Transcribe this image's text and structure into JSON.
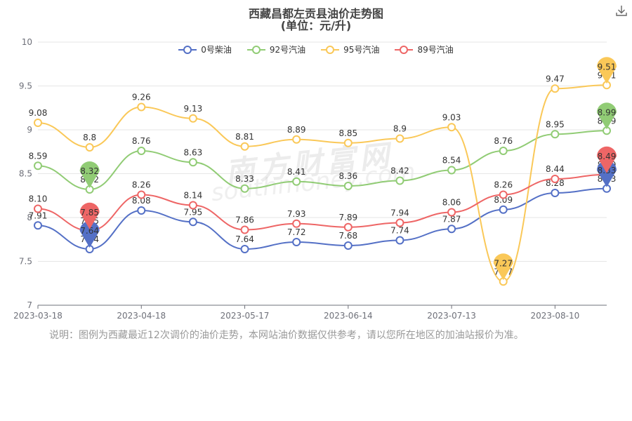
{
  "title_line1": "西藏昌都左贡县油价走势图",
  "title_line2": "(单位：元/升)",
  "download_icon": "download-icon",
  "note": "说明：图例为西藏最近12次调价的油价走势，本网站油价数据仅供参考，请以您所在地区的加油站报价为准。",
  "watermark": {
    "cn": "南方财富网",
    "en": "southmoney.com"
  },
  "chart_data": {
    "type": "line",
    "title": "西藏昌都左贡县油价走势图",
    "subtitle": "(单位：元/升)",
    "ylim": [
      7,
      10
    ],
    "yticks": [
      "7",
      "7.5",
      "8",
      "8.5",
      "9",
      "9.5",
      "10"
    ],
    "ytick_values": [
      7,
      7.5,
      8,
      8.5,
      9,
      9.5,
      10
    ],
    "x": [
      "2023-03-18",
      "",
      "2023-04-18",
      "",
      "2023-05-17",
      "",
      "2023-06-14",
      "",
      "2023-07-13",
      "",
      "2023-08-10",
      ""
    ],
    "xtick_labels": [
      {
        "i": 0,
        "label": "2023-03-18"
      },
      {
        "i": 2,
        "label": "2023-04-18"
      },
      {
        "i": 4,
        "label": "2023-05-17"
      },
      {
        "i": 6,
        "label": "2023-06-14"
      },
      {
        "i": 8,
        "label": "2023-07-13"
      },
      {
        "i": 10,
        "label": "2023-08-10"
      }
    ],
    "grid": true,
    "legend_position": "top",
    "series": [
      {
        "name": "0号柴油",
        "color": "#5470c6",
        "values": [
          7.91,
          7.64,
          8.08,
          7.95,
          7.64,
          7.72,
          7.68,
          7.74,
          7.87,
          8.09,
          8.28,
          8.33
        ],
        "labels": [
          "7.91",
          "7.64",
          "8.08",
          "7.95",
          "7.64",
          "7.72",
          "7.68",
          "7.74",
          "7.87",
          "8.09",
          "8.28",
          "8.33"
        ]
      },
      {
        "name": "92号汽油",
        "color": "#91cc75",
        "values": [
          8.59,
          8.32,
          8.76,
          8.63,
          8.33,
          8.41,
          8.36,
          8.42,
          8.54,
          8.76,
          8.95,
          8.99
        ],
        "labels": [
          "8.59",
          "8.32",
          "8.76",
          "8.63",
          "8.33",
          "8.41",
          "8.36",
          "8.42",
          "8.54",
          "8.76",
          "8.95",
          "8.99"
        ]
      },
      {
        "name": "95号汽油",
        "color": "#fac858",
        "values": [
          9.08,
          8.8,
          9.26,
          9.13,
          8.81,
          8.89,
          8.85,
          8.9,
          9.03,
          7.27,
          9.47,
          9.51
        ],
        "labels": [
          "9.08",
          "8.8",
          "9.26",
          "9.13",
          "8.81",
          "8.89",
          "8.85",
          "8.9",
          "9.03",
          "7.27",
          "9.47",
          "9.51"
        ]
      },
      {
        "name": "89号汽油",
        "color": "#ee6666",
        "values": [
          8.1,
          7.85,
          8.26,
          8.14,
          7.86,
          7.93,
          7.89,
          7.94,
          8.06,
          8.26,
          8.44,
          8.49
        ],
        "labels": [
          "8.10",
          "7.85",
          "8.26",
          "8.14",
          "7.86",
          "7.93",
          "7.89",
          "7.94",
          "8.06",
          "8.26",
          "8.44",
          "8.49"
        ]
      }
    ],
    "markers": [
      {
        "series": 0,
        "i": 1,
        "label": "7.64"
      },
      {
        "series": 0,
        "i": 11,
        "label": "8.33"
      },
      {
        "series": 1,
        "i": 1,
        "label": "8.32"
      },
      {
        "series": 1,
        "i": 11,
        "label": "8.99"
      },
      {
        "series": 2,
        "i": 9,
        "label": "7.27"
      },
      {
        "series": 2,
        "i": 11,
        "label": "9.51"
      },
      {
        "series": 3,
        "i": 1,
        "label": "7.85"
      },
      {
        "series": 3,
        "i": 11,
        "label": "8.49"
      }
    ]
  }
}
